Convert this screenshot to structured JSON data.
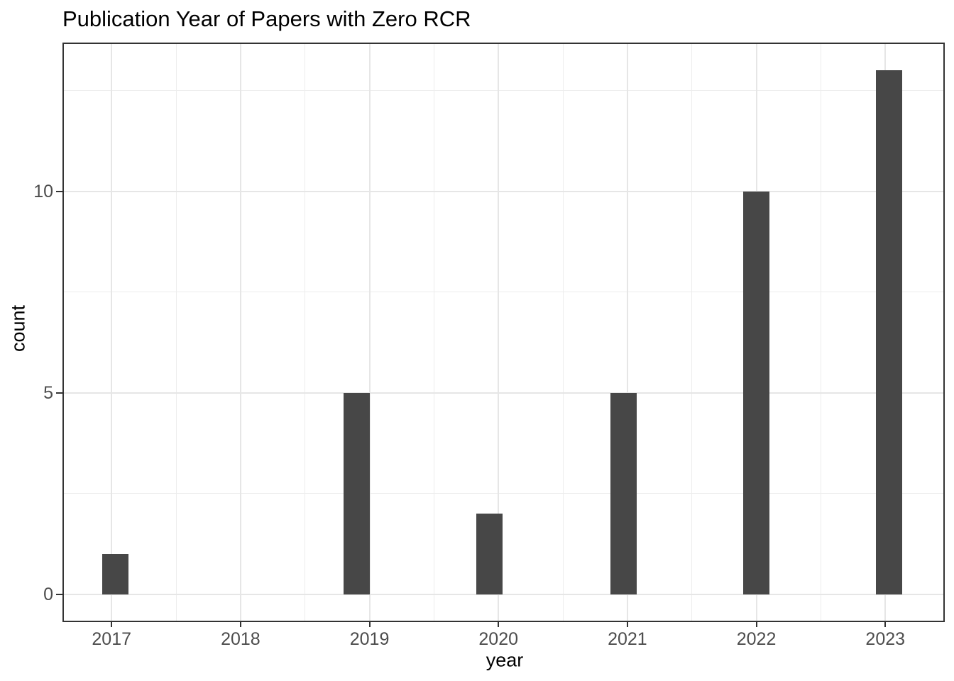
{
  "chart_data": {
    "type": "bar",
    "subtype": "histogram",
    "title": "Publication Year of Papers with Zero RCR",
    "xlabel": "year",
    "ylabel": "count",
    "categories": [
      "2017",
      "2018",
      "2019",
      "2020",
      "2021",
      "2022",
      "2023"
    ],
    "values": [
      1,
      0,
      5,
      2,
      5,
      10,
      13
    ],
    "x_ticks": [
      2017,
      2018,
      2019,
      2020,
      2021,
      2022,
      2023
    ],
    "x_tick_labels": [
      "2017",
      "2018",
      "2019",
      "2020",
      "2021",
      "2022",
      "2023"
    ],
    "y_ticks": [
      0,
      5,
      10
    ],
    "y_tick_labels": [
      "0",
      "5",
      "10"
    ],
    "x_minor_gridlines": [
      2017.5,
      2018.5,
      2019.5,
      2020.5,
      2021.5,
      2022.5
    ],
    "y_minor_gridlines": [
      2.5,
      7.5,
      12.5
    ],
    "x_range": [
      2016.63,
      2023.45
    ],
    "y_range": [
      -0.65,
      13.65
    ],
    "bar_width": 0.207,
    "bars": [
      {
        "year": 2017,
        "x_center": 2017.03,
        "count": 1
      },
      {
        "year": 2019,
        "x_center": 2018.9,
        "count": 5
      },
      {
        "year": 2020,
        "x_center": 2019.93,
        "count": 2
      },
      {
        "year": 2021,
        "x_center": 2020.97,
        "count": 5
      },
      {
        "year": 2022,
        "x_center": 2022.0,
        "count": 10
      },
      {
        "year": 2023,
        "x_center": 2023.03,
        "count": 13
      }
    ],
    "grid": true,
    "legend_position": "none"
  },
  "colors": {
    "bar_fill": "#474747",
    "panel_background": "#ffffff",
    "panel_border": "#333333",
    "grid_major": "#e6e6e6",
    "grid_minor": "#ededed",
    "tick_mark": "#333333",
    "tick_label": "#4d4d4d",
    "axis_title": "#000000",
    "title": "#000000"
  }
}
